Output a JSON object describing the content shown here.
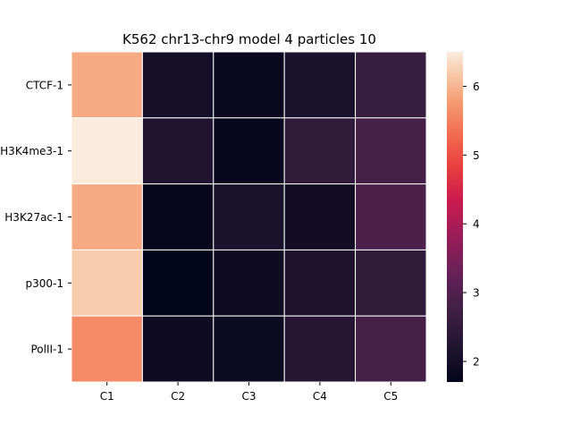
{
  "chart_data": {
    "type": "heatmap",
    "title": "K562 chr13-chr9 model 4 particles 10",
    "xlabel": "",
    "ylabel": "",
    "rows": [
      "CTCF-1",
      "H3K4me3-1",
      "H3K27ac-1",
      "p300-1",
      "PolII-1"
    ],
    "columns": [
      "C1",
      "C2",
      "C3",
      "C4",
      "C5"
    ],
    "values": [
      [
        5.9,
        2.0,
        1.8,
        2.1,
        2.6
      ],
      [
        6.5,
        2.2,
        1.75,
        2.5,
        2.8
      ],
      [
        5.9,
        1.75,
        2.1,
        1.95,
        2.9
      ],
      [
        6.2,
        1.7,
        1.9,
        2.15,
        2.5
      ],
      [
        5.6,
        1.9,
        1.85,
        2.3,
        2.8
      ]
    ],
    "colorbar": {
      "min": 1.7,
      "max": 6.5,
      "ticks": [
        2,
        3,
        4,
        5,
        6
      ],
      "colormap": "rocket"
    },
    "grid": false,
    "cell_border_color": "#ffffff"
  }
}
